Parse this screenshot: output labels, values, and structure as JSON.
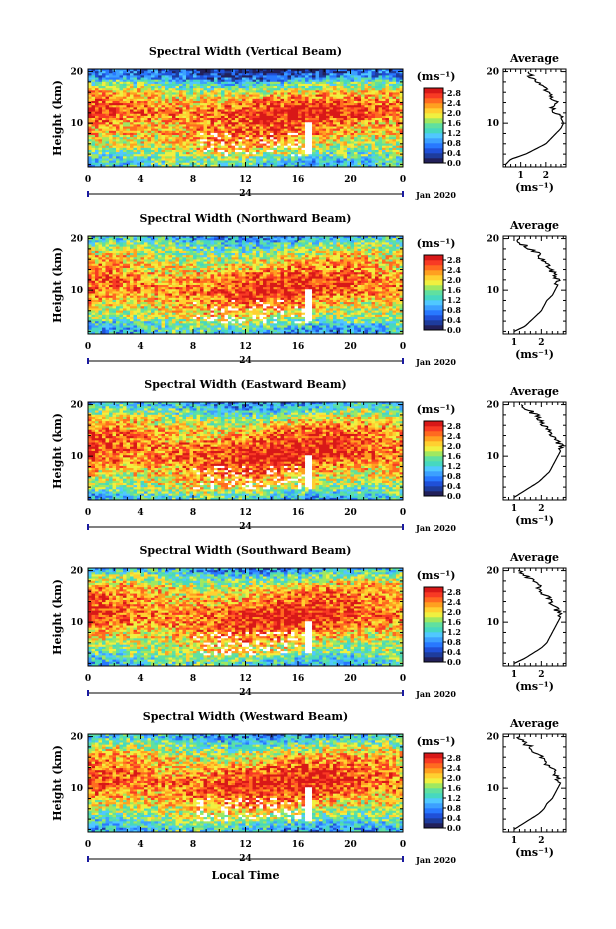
{
  "chart_data": {
    "type": "heatmap",
    "x_label": "Local Time",
    "x_ticks": [
      "0",
      "4",
      "8",
      "12",
      "16",
      "20",
      "0"
    ],
    "date_mid": "24",
    "date_label": "Jan 2020",
    "y_label": "Height (km)",
    "y_ticks": [
      "20",
      "10"
    ],
    "x_range_hours": [
      0,
      24
    ],
    "y_range_km": [
      1.5,
      20.5
    ],
    "colorbar": {
      "unit": "(ms⁻¹)",
      "ticks": [
        "2.8",
        "2.4",
        "2.0",
        "1.6",
        "1.2",
        "0.8",
        "0.4",
        "0.0"
      ],
      "range": [
        0.0,
        3.0
      ],
      "colors": [
        "#22205a",
        "#1e3c9c",
        "#2050d8",
        "#2878ff",
        "#3ca0ff",
        "#50c8ff",
        "#46d8c0",
        "#60e0a0",
        "#a0e860",
        "#f0f040",
        "#ffd030",
        "#ffa020",
        "#ff6a20",
        "#f83a24",
        "#d81818"
      ]
    },
    "avg_title": "Average",
    "avg_unit": "(ms⁻¹)",
    "avg_y_ticks": [
      "20",
      "10"
    ],
    "panels": [
      {
        "title": "Spectral Width (Vertical Beam)",
        "avg_x_ticks": [
          "1",
          "2"
        ],
        "avg_x_range": [
          0.3,
          2.8
        ],
        "profile": [
          [
            2.0,
            0.4
          ],
          [
            3.0,
            0.6
          ],
          [
            4.0,
            1.2
          ],
          [
            5.0,
            1.6
          ],
          [
            6.0,
            2.0
          ],
          [
            7.0,
            2.2
          ],
          [
            8.0,
            2.4
          ],
          [
            9.0,
            2.6
          ],
          [
            10.0,
            2.7
          ],
          [
            11.0,
            2.6
          ],
          [
            12.0,
            2.4
          ],
          [
            13.0,
            2.3
          ],
          [
            14.0,
            2.4
          ],
          [
            15.0,
            2.2
          ],
          [
            16.0,
            2.1
          ],
          [
            17.0,
            1.9
          ],
          [
            18.0,
            1.7
          ],
          [
            19.0,
            1.4
          ],
          [
            20.0,
            1.3
          ]
        ]
      },
      {
        "title": "Spectral Width (Northward Beam)",
        "avg_x_ticks": [
          "1",
          "2"
        ],
        "avg_x_range": [
          0.6,
          2.9
        ],
        "profile": [
          [
            2.0,
            1.0
          ],
          [
            3.0,
            1.4
          ],
          [
            4.0,
            1.6
          ],
          [
            5.0,
            1.8
          ],
          [
            6.0,
            2.0
          ],
          [
            7.0,
            2.1
          ],
          [
            8.0,
            2.2
          ],
          [
            9.0,
            2.4
          ],
          [
            10.0,
            2.5
          ],
          [
            11.0,
            2.6
          ],
          [
            12.0,
            2.6
          ],
          [
            13.0,
            2.5
          ],
          [
            14.0,
            2.3
          ],
          [
            15.0,
            2.2
          ],
          [
            16.0,
            2.0
          ],
          [
            17.0,
            1.9
          ],
          [
            18.0,
            1.6
          ],
          [
            19.0,
            1.3
          ],
          [
            20.0,
            1.1
          ]
        ]
      },
      {
        "title": "Spectral Width (Eastward Beam)",
        "avg_x_ticks": [
          "1",
          "2"
        ],
        "avg_x_range": [
          0.6,
          2.9
        ],
        "profile": [
          [
            2.0,
            1.0
          ],
          [
            3.0,
            1.3
          ],
          [
            4.0,
            1.6
          ],
          [
            5.0,
            1.9
          ],
          [
            6.0,
            2.1
          ],
          [
            7.0,
            2.3
          ],
          [
            8.0,
            2.4
          ],
          [
            9.0,
            2.5
          ],
          [
            10.0,
            2.6
          ],
          [
            11.0,
            2.7
          ],
          [
            12.0,
            2.7
          ],
          [
            13.0,
            2.6
          ],
          [
            14.0,
            2.4
          ],
          [
            15.0,
            2.3
          ],
          [
            16.0,
            2.1
          ],
          [
            17.0,
            2.0
          ],
          [
            18.0,
            1.8
          ],
          [
            19.0,
            1.5
          ],
          [
            20.0,
            1.2
          ]
        ]
      },
      {
        "title": "Spectral Width (Southward Beam)",
        "avg_x_ticks": [
          "1",
          "2"
        ],
        "avg_x_range": [
          0.6,
          2.9
        ],
        "profile": [
          [
            2.0,
            1.0
          ],
          [
            3.0,
            1.4
          ],
          [
            4.0,
            1.7
          ],
          [
            5.0,
            2.0
          ],
          [
            6.0,
            2.2
          ],
          [
            7.0,
            2.3
          ],
          [
            8.0,
            2.4
          ],
          [
            9.0,
            2.5
          ],
          [
            10.0,
            2.6
          ],
          [
            11.0,
            2.7
          ],
          [
            12.0,
            2.6
          ],
          [
            13.0,
            2.5
          ],
          [
            14.0,
            2.3
          ],
          [
            15.0,
            2.2
          ],
          [
            16.0,
            2.0
          ],
          [
            17.0,
            1.9
          ],
          [
            18.0,
            1.7
          ],
          [
            19.0,
            1.4
          ],
          [
            20.0,
            1.2
          ]
        ]
      },
      {
        "title": "Spectral Width (Westward Beam)",
        "avg_x_ticks": [
          "1",
          "2"
        ],
        "avg_x_range": [
          0.6,
          2.9
        ],
        "profile": [
          [
            2.0,
            1.0
          ],
          [
            3.0,
            1.3
          ],
          [
            4.0,
            1.6
          ],
          [
            5.0,
            1.9
          ],
          [
            6.0,
            2.1
          ],
          [
            7.0,
            2.2
          ],
          [
            8.0,
            2.4
          ],
          [
            9.0,
            2.5
          ],
          [
            10.0,
            2.6
          ],
          [
            11.0,
            2.7
          ],
          [
            12.0,
            2.6
          ],
          [
            13.0,
            2.5
          ],
          [
            14.0,
            2.3
          ],
          [
            15.0,
            2.2
          ],
          [
            16.0,
            2.0
          ],
          [
            17.0,
            1.8
          ],
          [
            18.0,
            1.6
          ],
          [
            19.0,
            1.3
          ],
          [
            20.0,
            1.1
          ]
        ]
      }
    ]
  }
}
